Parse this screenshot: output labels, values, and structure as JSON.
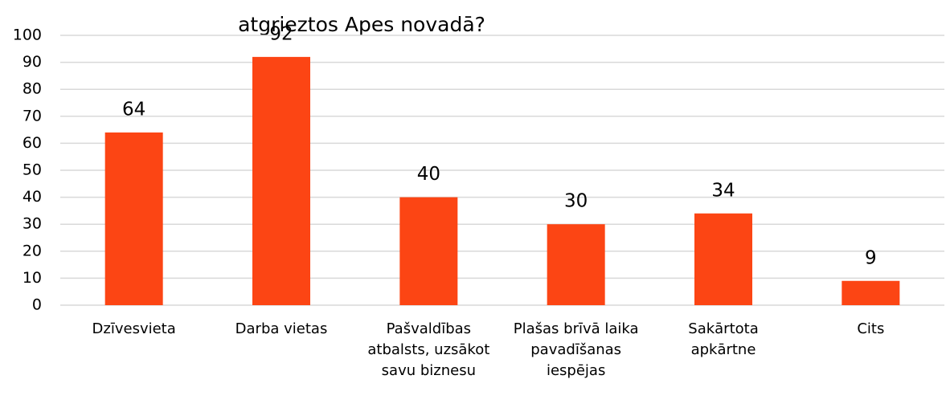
{
  "chart_data": {
    "type": "bar",
    "title": "atgrieztos Apes novadā?",
    "categories": [
      "Dzīvesvieta",
      "Darba vietas",
      "Pašvaldības atbalsts, uzsākot savu biznesu",
      "Plašas brīvā laika pavadīšanas iespējas",
      "Sakārtota apkārtne",
      "Cits"
    ],
    "values": [
      64,
      92,
      40,
      30,
      34,
      9
    ],
    "color": "#fc4514",
    "ylim": [
      0,
      100
    ],
    "yticks": [
      0,
      10,
      20,
      30,
      40,
      50,
      60,
      70,
      80,
      90,
      100
    ],
    "grid": true
  }
}
